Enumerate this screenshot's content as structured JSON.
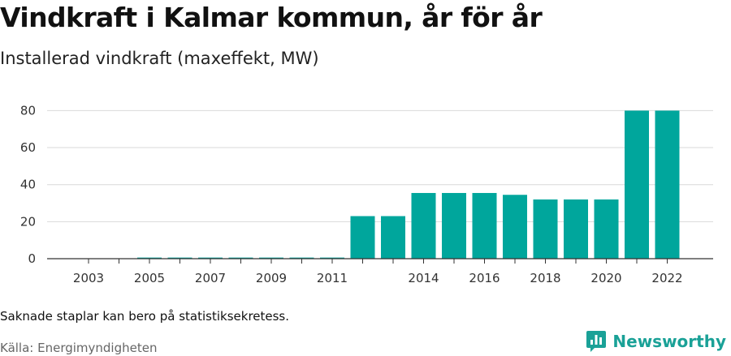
{
  "title": "Vindkraft i Kalmar kommun, år för år",
  "subtitle": "Installerad vindkraft (maxeffekt, MW)",
  "footnote": "Saknade staplar kan bero på statistiksekretess.",
  "source": "Källa: Energimyndigheten",
  "brand": {
    "name": "Newsworthy",
    "icon": "newsworthy-logo-icon",
    "color": "#1aa197"
  },
  "chart_data": {
    "type": "bar",
    "categories": [
      "2003",
      "2004",
      "2005",
      "2006",
      "2007",
      "2008",
      "2009",
      "2010",
      "2011",
      "2012",
      "2013",
      "2014",
      "2015",
      "2016",
      "2017",
      "2018",
      "2019",
      "2020",
      "2021",
      "2022"
    ],
    "x_tick_labels": [
      "2003",
      "",
      "2005",
      "",
      "2007",
      "",
      "2009",
      "",
      "2011",
      "",
      "",
      "2014",
      "",
      "2016",
      "",
      "2018",
      "",
      "2020",
      "",
      "2022"
    ],
    "values": [
      0,
      0,
      0.6,
      0.6,
      0.6,
      0.6,
      0.6,
      0.6,
      0.6,
      23,
      23,
      35.5,
      35.5,
      35.5,
      34.5,
      32,
      32,
      32,
      80,
      80
    ],
    "ylim": [
      0,
      85
    ],
    "yticks": [
      0,
      20,
      40,
      60,
      80
    ],
    "grid": true,
    "bar_color": "#00a69c"
  }
}
